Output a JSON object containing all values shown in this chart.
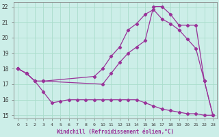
{
  "xlabel": "Windchill (Refroidissement éolien,°C)",
  "bg_color": "#cceee8",
  "grid_color": "#aaddcc",
  "line_color": "#993399",
  "xlim": [
    -0.5,
    23.5
  ],
  "ylim": [
    14.8,
    22.3
  ],
  "xticks": [
    0,
    1,
    2,
    3,
    4,
    5,
    6,
    7,
    8,
    9,
    10,
    11,
    12,
    13,
    14,
    15,
    16,
    17,
    18,
    19,
    20,
    21,
    22,
    23
  ],
  "yticks": [
    15,
    16,
    17,
    18,
    19,
    20,
    21,
    22
  ],
  "line1_x": [
    0,
    1,
    2,
    3,
    10,
    11,
    12,
    13,
    14,
    15,
    16,
    17,
    18,
    19,
    20,
    21,
    22,
    23
  ],
  "line1_y": [
    18.0,
    17.7,
    17.2,
    17.2,
    17.0,
    17.7,
    18.4,
    19.0,
    19.4,
    19.8,
    22.0,
    22.0,
    21.5,
    20.8,
    20.8,
    20.8,
    17.2,
    15.0
  ],
  "line2_x": [
    0,
    1,
    2,
    3,
    9,
    10,
    11,
    12,
    13,
    14,
    15,
    16,
    17,
    18,
    19,
    20,
    21,
    22,
    23
  ],
  "line2_y": [
    18.0,
    17.7,
    17.2,
    17.2,
    17.5,
    18.0,
    18.8,
    19.4,
    20.5,
    20.9,
    21.5,
    21.8,
    21.2,
    20.9,
    20.5,
    19.9,
    19.3,
    17.2,
    15.0
  ],
  "line3_x": [
    0,
    1,
    2,
    3,
    4,
    5,
    6,
    7,
    8,
    9,
    10,
    11,
    12,
    13,
    14,
    15,
    16,
    17,
    18,
    19,
    20,
    21,
    22,
    23
  ],
  "line3_y": [
    18.0,
    17.7,
    17.2,
    16.5,
    15.8,
    15.9,
    16.0,
    16.0,
    16.0,
    16.0,
    16.0,
    16.0,
    16.0,
    16.0,
    16.0,
    15.8,
    15.6,
    15.4,
    15.3,
    15.2,
    15.1,
    15.1,
    15.0,
    15.0
  ]
}
